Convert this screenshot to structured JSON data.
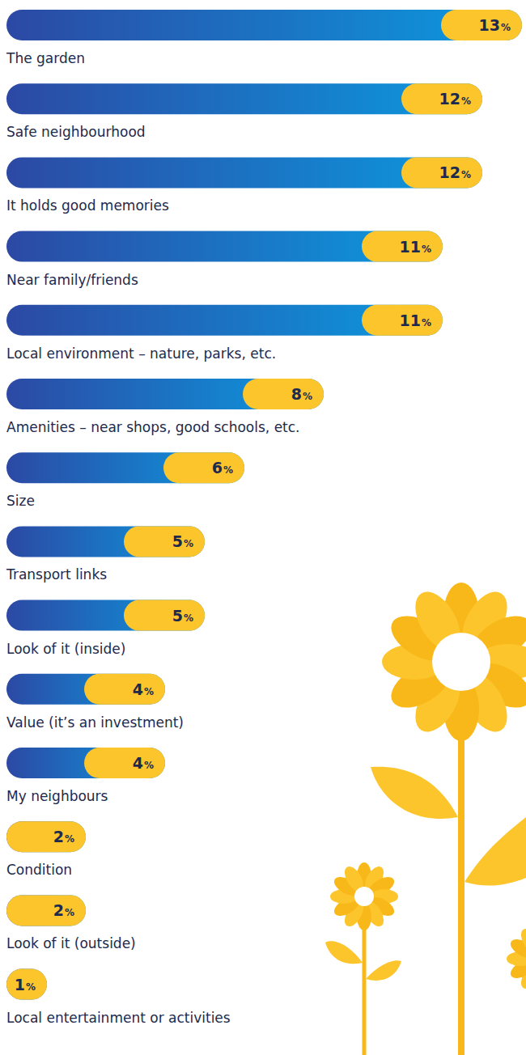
{
  "chart_data": {
    "type": "bar",
    "categories": [
      "The garden",
      "Safe neighbourhood",
      "It holds good memories",
      "Near family/friends",
      "Local environment – nature, parks, etc.",
      "Amenities – near shops, good schools, etc.",
      "Size",
      "Transport links",
      "Look of it (inside)",
      "Value (it’s an investment)",
      "My neighbours",
      "Condition",
      "Look of it (outside)",
      "Local entertainment or activities"
    ],
    "values": [
      13,
      12,
      12,
      11,
      11,
      8,
      6,
      5,
      5,
      4,
      4,
      2,
      2,
      1
    ],
    "value_labels": [
      "13%",
      "12%",
      "12%",
      "11%",
      "11%",
      "8%",
      "6%",
      "5%",
      "5%",
      "4%",
      "4%",
      "2%",
      "2%",
      "1%"
    ],
    "color": "#0b9be0",
    "orientation": "horizontal",
    "data_labels": true,
    "tick_labels": false
  }
}
